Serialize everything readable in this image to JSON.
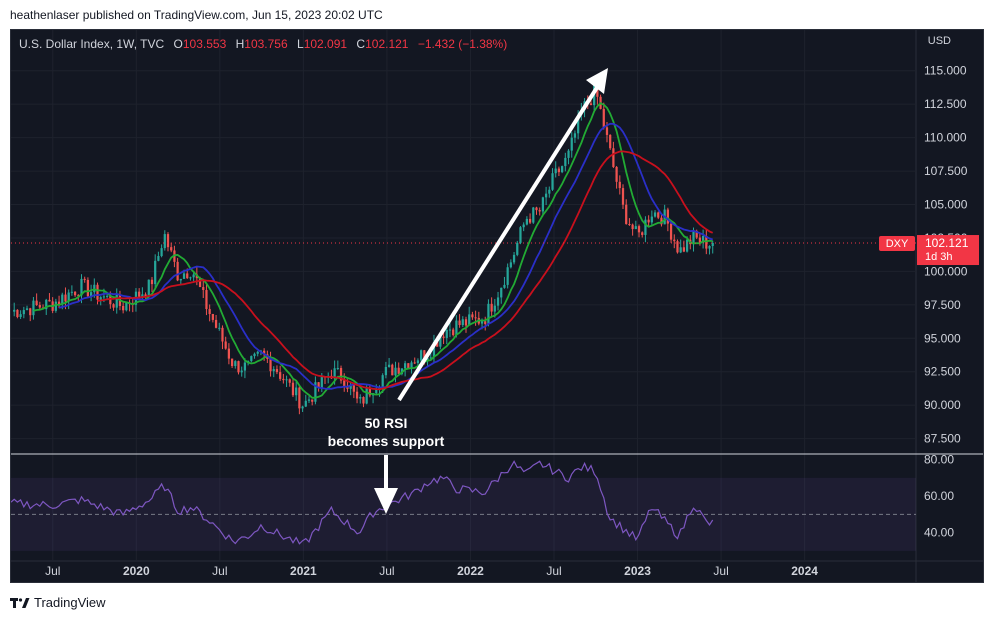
{
  "header": {
    "caption": "heathenlaser published on TradingView.com, Jun 15, 2023 20:02 UTC"
  },
  "legend": {
    "symbol": "U.S. Dollar Index, 1W, TVC",
    "o_key": "O",
    "o_val": "103.553",
    "h_key": "H",
    "h_val": "103.756",
    "l_key": "L",
    "l_val": "102.091",
    "c_key": "C",
    "c_val": "102.121",
    "change": "−1.432 (−1.38%)"
  },
  "axis": {
    "currency": "USD"
  },
  "price_tag": {
    "symbol": "DXY",
    "price": "102.121",
    "countdown": "1d 3h"
  },
  "annotation": {
    "line1": "50 RSI",
    "line2": "becomes support"
  },
  "footer": {
    "brand": "TradingView"
  },
  "colors": {
    "background": "#131722",
    "up": "#26a69a",
    "down": "#ef5350",
    "ma_fast": "#22ab34",
    "ma_mid": "#2a2fc8",
    "ma_slow": "#c8101d",
    "rsi": "#7e57c2",
    "price_tag": "#f23645",
    "annotation": "#ffffff"
  },
  "chart_data": [
    {
      "type": "candlestick",
      "name": "U.S. Dollar Index, 1W, TVC",
      "yaxis_ticks": [
        "87.500",
        "90.000",
        "92.500",
        "95.000",
        "97.500",
        "100.000",
        "102.500",
        "105.000",
        "107.500",
        "110.000",
        "112.500",
        "115.000"
      ],
      "ylim": [
        86.5,
        116.7
      ],
      "xaxis_ticks": [
        "Jul",
        "2020",
        "Jul",
        "2021",
        "Jul",
        "2022",
        "Jul",
        "2023",
        "Jul",
        "2024"
      ],
      "x_range": [
        "2019-04",
        "2024-09"
      ],
      "last_price": 102.121,
      "close_path_points": [
        {
          "x": "2019-04",
          "y": 97.0
        },
        {
          "x": "2019-07",
          "y": 97.6
        },
        {
          "x": "2019-09",
          "y": 98.9
        },
        {
          "x": "2019-12",
          "y": 97.4
        },
        {
          "x": "2020-02",
          "y": 98.9
        },
        {
          "x": "2020-03",
          "y": 102.8
        },
        {
          "x": "2020-04",
          "y": 99.7
        },
        {
          "x": "2020-05",
          "y": 100.2
        },
        {
          "x": "2020-06",
          "y": 97.5
        },
        {
          "x": "2020-08",
          "y": 93.0
        },
        {
          "x": "2020-09",
          "y": 92.8
        },
        {
          "x": "2020-10",
          "y": 93.8
        },
        {
          "x": "2020-11",
          "y": 92.8
        },
        {
          "x": "2021-01",
          "y": 90.0
        },
        {
          "x": "2021-03",
          "y": 92.5
        },
        {
          "x": "2021-04",
          "y": 92.0
        },
        {
          "x": "2021-05",
          "y": 90.0
        },
        {
          "x": "2021-06",
          "y": 91.5
        },
        {
          "x": "2021-07",
          "y": 92.5
        },
        {
          "x": "2021-09",
          "y": 93.5
        },
        {
          "x": "2021-10",
          "y": 94.0
        },
        {
          "x": "2021-11",
          "y": 95.5
        },
        {
          "x": "2021-12",
          "y": 96.0
        },
        {
          "x": "2022-02",
          "y": 96.5
        },
        {
          "x": "2022-03",
          "y": 98.5
        },
        {
          "x": "2022-04",
          "y": 101.0
        },
        {
          "x": "2022-05",
          "y": 104.0
        },
        {
          "x": "2022-06",
          "y": 104.5
        },
        {
          "x": "2022-07",
          "y": 107.0
        },
        {
          "x": "2022-08",
          "y": 108.5
        },
        {
          "x": "2022-09",
          "y": 112.0
        },
        {
          "x": "2022-10",
          "y": 113.5
        },
        {
          "x": "2022-11",
          "y": 109.0
        },
        {
          "x": "2022-12",
          "y": 104.5
        },
        {
          "x": "2023-01",
          "y": 102.5
        },
        {
          "x": "2023-02",
          "y": 104.5
        },
        {
          "x": "2023-03",
          "y": 104.0
        },
        {
          "x": "2023-04",
          "y": 101.5
        },
        {
          "x": "2023-05",
          "y": 102.5
        },
        {
          "x": "2023-06",
          "y": 102.1
        }
      ]
    },
    {
      "type": "line",
      "name": "RSI",
      "yaxis_ticks": [
        "40.00",
        "60.00",
        "80.00"
      ],
      "ylim": [
        25,
        82
      ],
      "band": [
        30,
        70
      ],
      "midline": 50,
      "points": [
        {
          "x": "2019-04",
          "y": 56
        },
        {
          "x": "2019-07",
          "y": 55
        },
        {
          "x": "2019-09",
          "y": 58
        },
        {
          "x": "2019-12",
          "y": 50
        },
        {
          "x": "2020-02",
          "y": 58
        },
        {
          "x": "2020-03",
          "y": 66
        },
        {
          "x": "2020-04",
          "y": 52
        },
        {
          "x": "2020-05",
          "y": 54
        },
        {
          "x": "2020-06",
          "y": 48
        },
        {
          "x": "2020-08",
          "y": 35
        },
        {
          "x": "2020-09",
          "y": 38
        },
        {
          "x": "2020-10",
          "y": 44
        },
        {
          "x": "2020-11",
          "y": 40
        },
        {
          "x": "2021-01",
          "y": 33
        },
        {
          "x": "2021-03",
          "y": 52
        },
        {
          "x": "2021-04",
          "y": 46
        },
        {
          "x": "2021-05",
          "y": 40
        },
        {
          "x": "2021-06",
          "y": 51
        },
        {
          "x": "2021-07",
          "y": 55
        },
        {
          "x": "2021-09",
          "y": 62
        },
        {
          "x": "2021-10",
          "y": 68
        },
        {
          "x": "2021-11",
          "y": 70
        },
        {
          "x": "2021-12",
          "y": 64
        },
        {
          "x": "2022-02",
          "y": 62
        },
        {
          "x": "2022-03",
          "y": 70
        },
        {
          "x": "2022-04",
          "y": 78
        },
        {
          "x": "2022-05",
          "y": 72
        },
        {
          "x": "2022-06",
          "y": 78
        },
        {
          "x": "2022-07",
          "y": 74
        },
        {
          "x": "2022-08",
          "y": 70
        },
        {
          "x": "2022-09",
          "y": 76
        },
        {
          "x": "2022-10",
          "y": 74
        },
        {
          "x": "2022-11",
          "y": 48
        },
        {
          "x": "2022-12",
          "y": 42
        },
        {
          "x": "2023-01",
          "y": 36
        },
        {
          "x": "2023-02",
          "y": 54
        },
        {
          "x": "2023-03",
          "y": 46
        },
        {
          "x": "2023-04",
          "y": 38
        },
        {
          "x": "2023-05",
          "y": 56
        },
        {
          "x": "2023-06",
          "y": 45
        }
      ]
    }
  ]
}
